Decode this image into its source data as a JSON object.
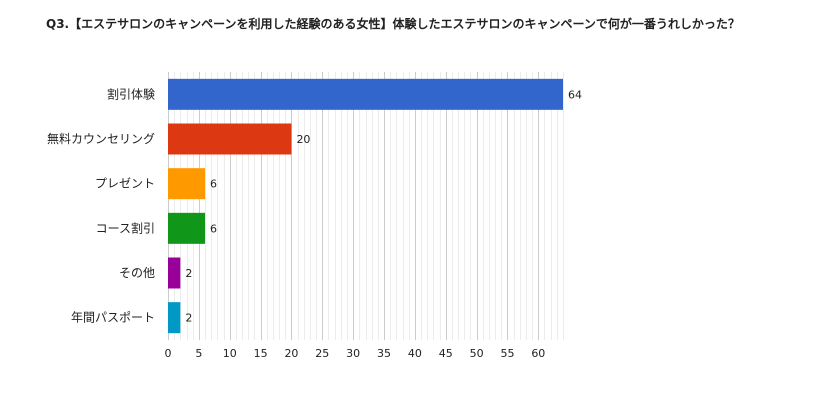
{
  "question": {
    "title": "Q3.【エステサロンのキャンペーンを利用した経験のある女性】体験したエステサロンのキャンペーンで何が一番うれしかった？"
  },
  "chart_data": {
    "type": "bar",
    "orientation": "horizontal",
    "title": "Q3.【エステサロンのキャンペーンを利用した経験のある女性】体験したエステサロンのキャンペーンで何が一番うれしかった？",
    "categories": [
      "割引体験",
      "無料カウンセリング",
      "プレゼント",
      "コース割引",
      "その他",
      "年間パスポート"
    ],
    "values": [
      64,
      20,
      6,
      6,
      2,
      2
    ],
    "colors": [
      "#3366cc",
      "#dc3912",
      "#ff9900",
      "#109618",
      "#990099",
      "#0099c6"
    ],
    "xlim": [
      0,
      64
    ],
    "xticks": [
      0,
      5,
      10,
      15,
      20,
      25,
      30,
      35,
      40,
      45,
      50,
      55,
      60
    ],
    "grid": true,
    "xlabel": "",
    "ylabel": ""
  }
}
